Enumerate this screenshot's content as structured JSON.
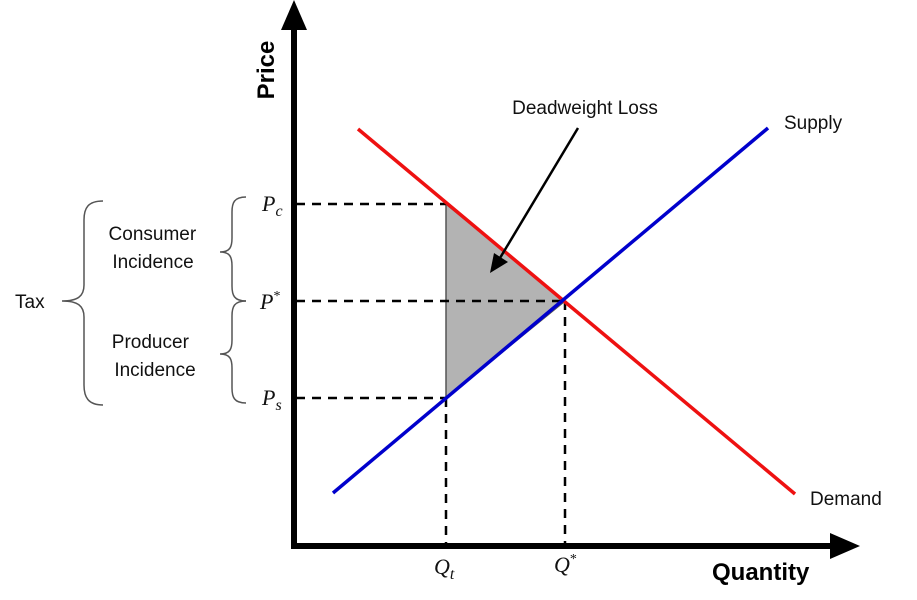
{
  "axes": {
    "y_title": "Price",
    "x_title": "Quantity"
  },
  "curves": {
    "supply_label": "Supply",
    "demand_label": "Demand",
    "supply_color": "#0000cc",
    "demand_color": "#ee1111"
  },
  "region": {
    "label": "Deadweight Loss",
    "fill_color": "#b3b3b3"
  },
  "price_ticks": {
    "pc": {
      "base": "P",
      "sub": "c"
    },
    "pstar": {
      "base": "P",
      "sup": "*"
    },
    "ps": {
      "base": "P",
      "sub": "s"
    }
  },
  "quantity_ticks": {
    "qt": {
      "base": "Q",
      "sub": "t"
    },
    "qstar": {
      "base": "Q",
      "sup": "*"
    }
  },
  "incidence": {
    "tax_label": "Tax",
    "consumer_line1": "Consumer",
    "consumer_line2": "Incidence",
    "producer_line1": "Producer",
    "producer_line2": "Incidence"
  }
}
